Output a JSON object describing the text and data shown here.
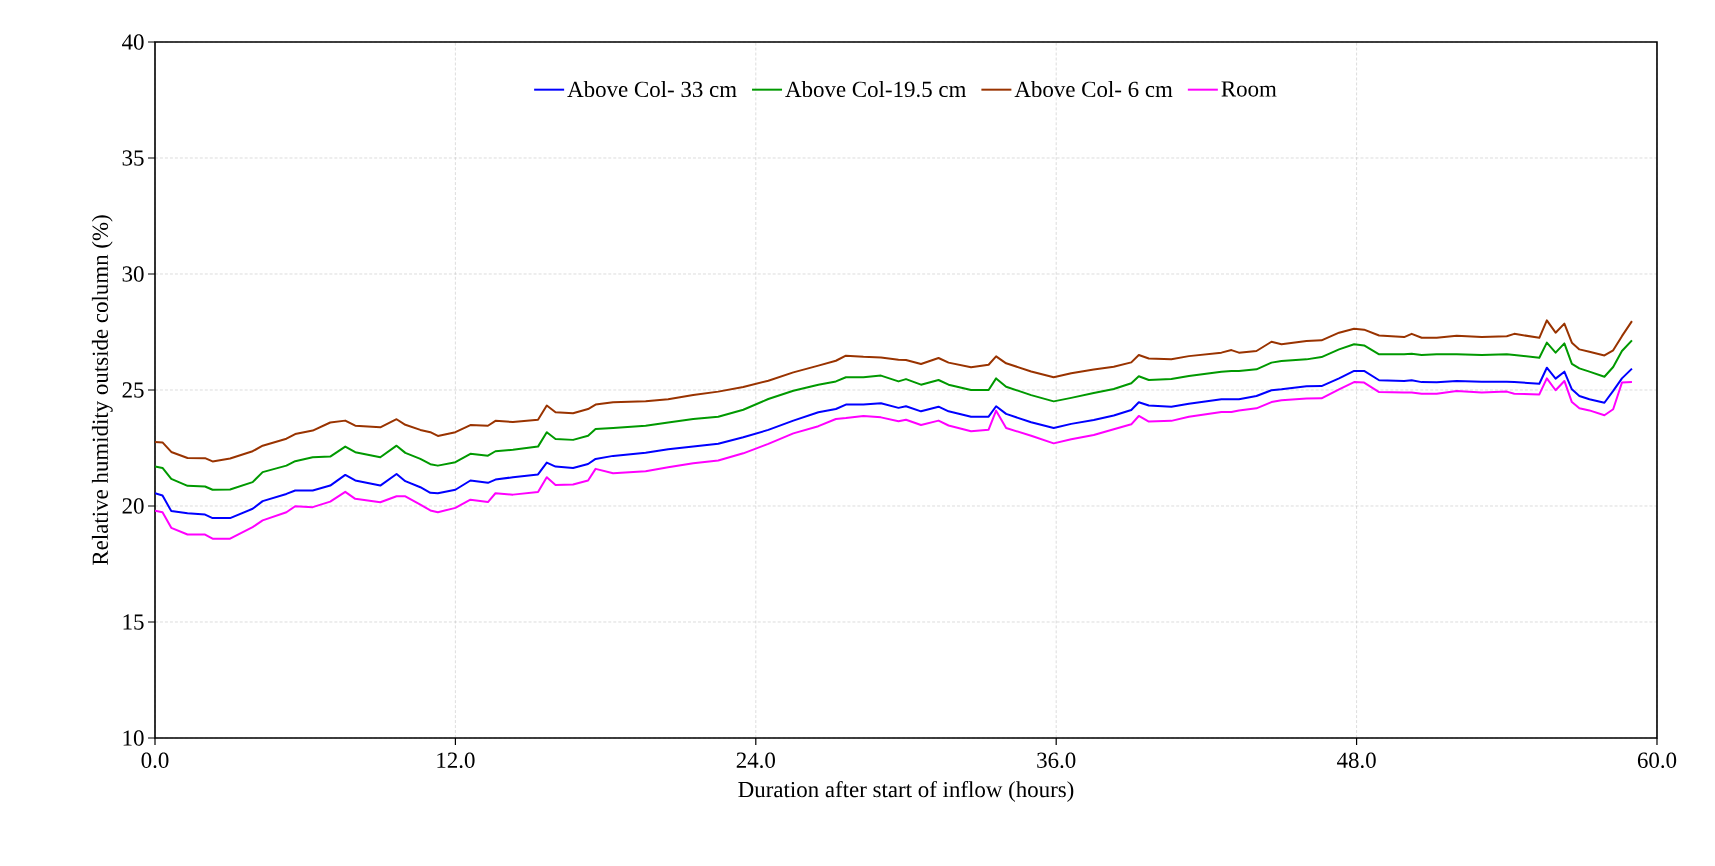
{
  "chart_data": {
    "type": "line",
    "xlabel": "Duration after start of inflow (hours)",
    "ylabel": "Relative humidity outside column (%)",
    "x": [
      0,
      0.3,
      0.65,
      1.3,
      2.0,
      2.3,
      3.0,
      3.9,
      4.3,
      5.25,
      5.6,
      6.3,
      7.0,
      7.6,
      8.0,
      9.0,
      9.65,
      10.0,
      10.6,
      11.0,
      11.3,
      12.0,
      12.6,
      13.3,
      13.6,
      14.3,
      15.3,
      15.65,
      16.0,
      16.7,
      17.3,
      17.6,
      18.3,
      19.6,
      20.5,
      21.5,
      22.5,
      23.5,
      24.5,
      25.5,
      26.5,
      27.2,
      27.6,
      28.3,
      29,
      29.7,
      30,
      30.6,
      31.3,
      31.7,
      32.6,
      33.3,
      33.6,
      34,
      35,
      35.9,
      36.6,
      37.5,
      38.3,
      39,
      39.3,
      39.7,
      40.6,
      41.3,
      42.6,
      43,
      43.3,
      44,
      44.6,
      45,
      46,
      46.6,
      47.3,
      47.9,
      48.3,
      48.9,
      49.9,
      50.2,
      50.6,
      51.2,
      52,
      53,
      54,
      54.3,
      55.3,
      55.6,
      55.95,
      56.3,
      56.6,
      56.9,
      57.3,
      57.9,
      58.25,
      58.6,
      59
    ],
    "series": [
      {
        "name": "Above Col- 33 cm",
        "color": "#0000ff",
        "values": [
          20.55,
          20.45,
          19.78,
          19.69,
          19.63,
          19.48,
          19.48,
          19.88,
          20.21,
          20.52,
          20.67,
          20.67,
          20.88,
          21.34,
          21.1,
          20.88,
          21.38,
          21.07,
          20.81,
          20.57,
          20.55,
          20.7,
          21.1,
          21.0,
          21.14,
          21.24,
          21.36,
          21.87,
          21.7,
          21.64,
          21.81,
          22.03,
          22.16,
          22.3,
          22.45,
          22.56,
          22.68,
          22.96,
          23.28,
          23.68,
          24.04,
          24.18,
          24.37,
          24.37,
          24.43,
          24.23,
          24.3,
          24.08,
          24.28,
          24.08,
          23.85,
          23.85,
          24.3,
          23.97,
          23.61,
          23.36,
          23.54,
          23.71,
          23.9,
          24.14,
          24.47,
          24.33,
          24.28,
          24.41,
          24.6,
          24.6,
          24.6,
          24.74,
          24.99,
          25.03,
          25.16,
          25.17,
          25.5,
          25.82,
          25.82,
          25.42,
          25.39,
          25.42,
          25.34,
          25.33,
          25.39,
          25.36,
          25.36,
          25.34,
          25.27,
          25.96,
          25.49,
          25.79,
          25.03,
          24.74,
          24.6,
          24.45,
          24.96,
          25.5,
          25.92
        ]
      },
      {
        "name": "Above Col-19.5 cm",
        "color": "#009900",
        "values": [
          21.7,
          21.64,
          21.17,
          20.87,
          20.84,
          20.7,
          20.71,
          21.03,
          21.46,
          21.74,
          21.93,
          22.1,
          22.13,
          22.56,
          22.32,
          22.1,
          22.6,
          22.29,
          22.03,
          21.8,
          21.74,
          21.89,
          22.25,
          22.17,
          22.36,
          22.42,
          22.56,
          23.18,
          22.89,
          22.85,
          23.03,
          23.32,
          23.36,
          23.46,
          23.6,
          23.75,
          23.85,
          24.15,
          24.61,
          24.97,
          25.23,
          25.37,
          25.55,
          25.55,
          25.62,
          25.37,
          25.47,
          25.23,
          25.43,
          25.23,
          25.0,
          25.0,
          25.5,
          25.14,
          24.78,
          24.51,
          24.66,
          24.87,
          25.04,
          25.29,
          25.59,
          25.43,
          25.47,
          25.6,
          25.79,
          25.82,
          25.82,
          25.89,
          26.18,
          26.25,
          26.32,
          26.42,
          26.75,
          26.97,
          26.92,
          26.54,
          26.54,
          26.56,
          26.51,
          26.54,
          26.54,
          26.51,
          26.54,
          26.51,
          26.39,
          27.04,
          26.61,
          27.01,
          26.13,
          25.93,
          25.79,
          25.57,
          25.99,
          26.68,
          27.14
        ]
      },
      {
        "name": "Above Col- 6 cm",
        "color": "#993300",
        "values": [
          22.76,
          22.74,
          22.33,
          22.07,
          22.06,
          21.92,
          22.05,
          22.36,
          22.6,
          22.9,
          23.1,
          23.25,
          23.6,
          23.68,
          23.46,
          23.39,
          23.74,
          23.5,
          23.28,
          23.18,
          23.02,
          23.18,
          23.49,
          23.46,
          23.67,
          23.62,
          23.72,
          24.33,
          24.04,
          24.0,
          24.18,
          24.37,
          24.47,
          24.51,
          24.6,
          24.78,
          24.93,
          25.13,
          25.4,
          25.76,
          26.05,
          26.26,
          26.48,
          26.43,
          26.4,
          26.3,
          26.29,
          26.12,
          26.38,
          26.18,
          25.98,
          26.09,
          26.45,
          26.15,
          25.8,
          25.55,
          25.72,
          25.88,
          26.0,
          26.19,
          26.51,
          26.36,
          26.33,
          26.46,
          26.61,
          26.72,
          26.61,
          26.68,
          27.08,
          26.97,
          27.11,
          27.14,
          27.47,
          27.64,
          27.6,
          27.35,
          27.28,
          27.42,
          27.25,
          27.25,
          27.34,
          27.28,
          27.32,
          27.42,
          27.25,
          28.0,
          27.47,
          27.86,
          27.04,
          26.75,
          26.65,
          26.49,
          26.71,
          27.32,
          27.97
        ]
      },
      {
        "name": "Room",
        "color": "#ff00ff",
        "values": [
          19.8,
          19.73,
          19.06,
          18.77,
          18.77,
          18.59,
          18.59,
          19.09,
          19.38,
          19.73,
          19.99,
          19.95,
          20.19,
          20.61,
          20.31,
          20.16,
          20.42,
          20.42,
          20.06,
          19.81,
          19.73,
          19.92,
          20.27,
          20.17,
          20.55,
          20.49,
          20.6,
          21.24,
          20.91,
          20.93,
          21.1,
          21.6,
          21.41,
          21.5,
          21.67,
          21.84,
          21.96,
          22.27,
          22.68,
          23.13,
          23.44,
          23.75,
          23.79,
          23.88,
          23.82,
          23.65,
          23.72,
          23.49,
          23.68,
          23.47,
          23.22,
          23.29,
          24.11,
          23.36,
          23.03,
          22.7,
          22.88,
          23.06,
          23.31,
          23.52,
          23.88,
          23.64,
          23.67,
          23.85,
          24.05,
          24.05,
          24.12,
          24.21,
          24.48,
          24.56,
          24.63,
          24.64,
          25.03,
          25.34,
          25.32,
          24.91,
          24.89,
          24.89,
          24.84,
          24.84,
          24.96,
          24.89,
          24.93,
          24.84,
          24.81,
          25.5,
          24.99,
          25.39,
          24.48,
          24.21,
          24.12,
          23.91,
          24.17,
          25.32,
          25.34
        ]
      }
    ],
    "xlim": [
      0,
      60
    ],
    "xticks": [
      {
        "value": 0,
        "label": "0.0"
      },
      {
        "value": 12,
        "label": "12.0"
      },
      {
        "value": 24,
        "label": "24.0"
      },
      {
        "value": 36,
        "label": "36.0"
      },
      {
        "value": 48,
        "label": "48.0"
      },
      {
        "value": 60,
        "label": "60.0"
      }
    ],
    "ylim": [
      10,
      40
    ],
    "yticks": [
      10,
      15,
      20,
      25,
      30,
      35,
      40
    ],
    "grid": true,
    "legend": "top",
    "marker": "none",
    "line_style": "solid"
  }
}
